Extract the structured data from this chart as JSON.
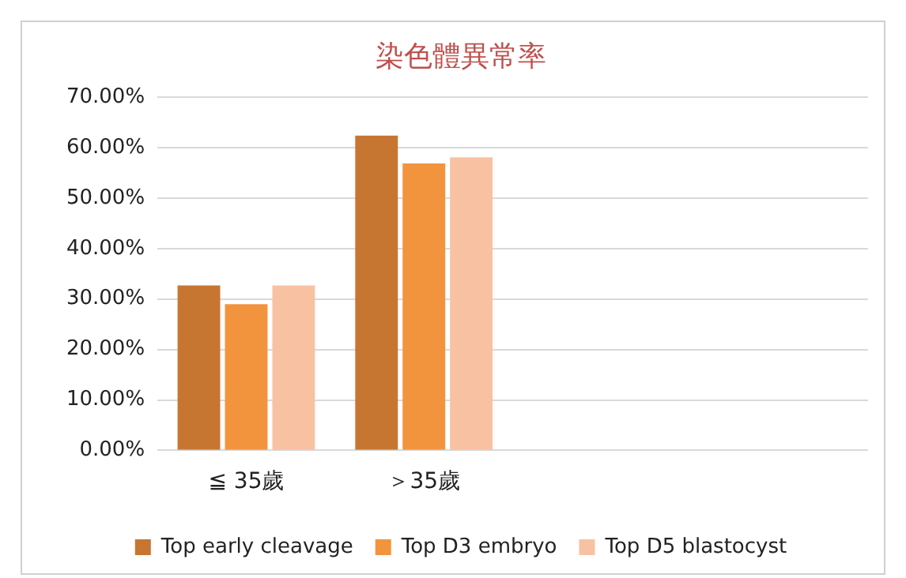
{
  "chart_data": {
    "type": "bar",
    "title": "染色體異常率",
    "categories": [
      "≦ 35歲",
      "＞35歲",
      null,
      null
    ],
    "series": [
      {
        "name": "Top early cleavage",
        "color": "#c77632",
        "values": [
          32.7,
          62.4,
          null,
          null
        ]
      },
      {
        "name": "Top D3 embryo",
        "color": "#f2943e",
        "values": [
          29.0,
          56.9,
          null,
          null
        ]
      },
      {
        "name": "Top D5 blastocyst",
        "color": "#f8c2a2",
        "values": [
          32.7,
          58.1,
          null,
          null
        ]
      }
    ],
    "ylim": [
      0,
      70
    ],
    "yticks": [
      {
        "value": 0,
        "label": "0.00%"
      },
      {
        "value": 10,
        "label": "10.00%"
      },
      {
        "value": 20,
        "label": "20.00%"
      },
      {
        "value": 30,
        "label": "30.00%"
      },
      {
        "value": 40,
        "label": "40.00%"
      },
      {
        "value": 50,
        "label": "50.00%"
      },
      {
        "value": 60,
        "label": "60.00%"
      },
      {
        "value": 70,
        "label": "70.00%"
      }
    ],
    "grid": "y",
    "legend": "bottom"
  }
}
